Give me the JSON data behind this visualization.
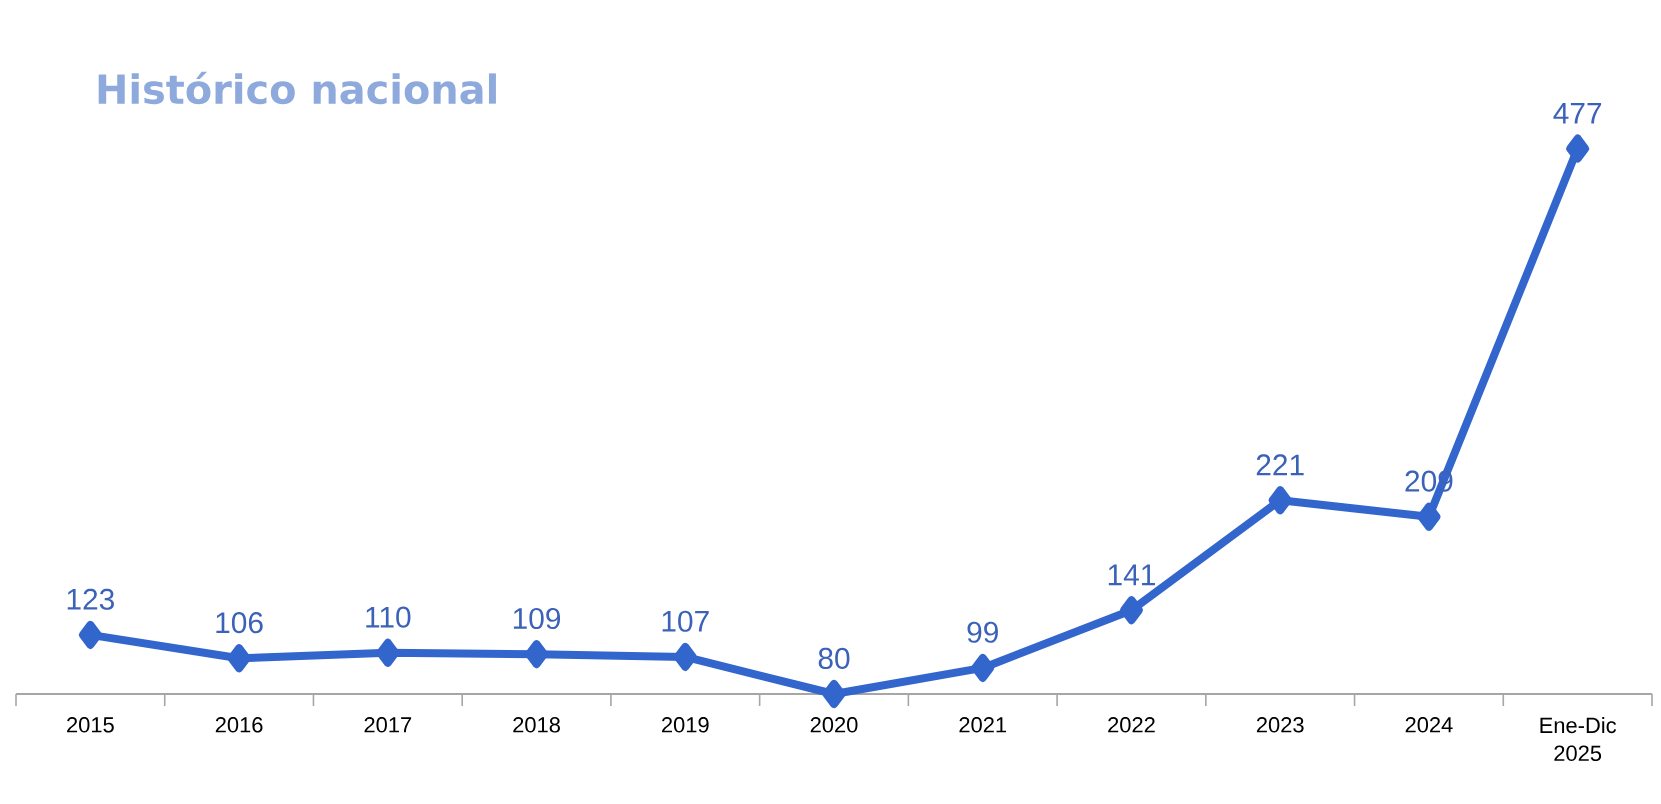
{
  "chart_data": {
    "type": "line",
    "title": "Histórico nacional",
    "categories": [
      "2015",
      "2016",
      "2017",
      "2018",
      "2019",
      "2020",
      "2021",
      "2022",
      "2023",
      "2024",
      "Ene-Dic 2025"
    ],
    "values": [
      123,
      106,
      110,
      109,
      107,
      80,
      99,
      141,
      221,
      209,
      477
    ],
    "color": "#3366cc",
    "marker": "diamond",
    "data_labels": true
  }
}
